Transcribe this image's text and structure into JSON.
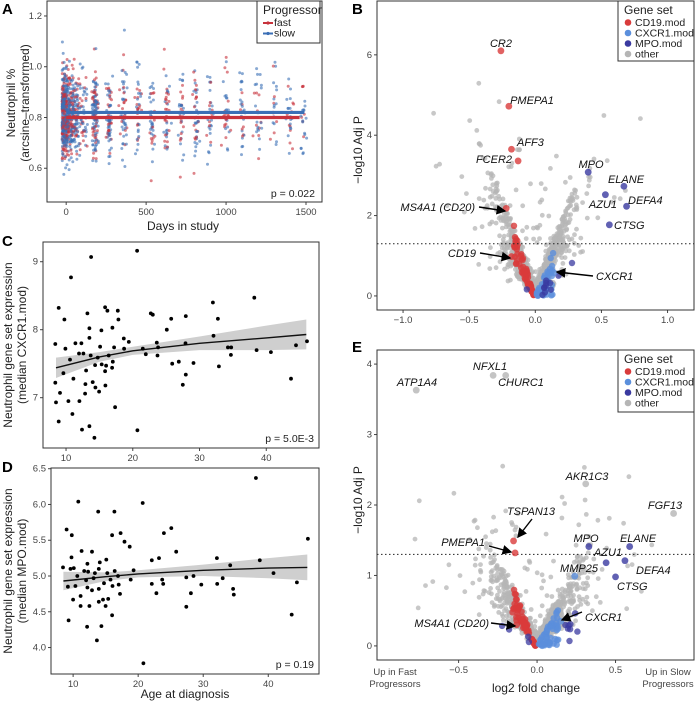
{
  "chart_data": [
    {
      "panel": "A",
      "type": "scatter",
      "xlabel": "Days in study",
      "ylabel": [
        "Neutrophil %",
        "(arcsine–transformed)"
      ],
      "x_ticks": [
        "0",
        "500",
        "1000",
        "1500"
      ],
      "y_ticks": [
        "0.6",
        "0.8",
        "1.0",
        "1.2"
      ],
      "xlim": [
        -120,
        1600
      ],
      "ylim": [
        0.467,
        1.259
      ],
      "grid": false,
      "legend": {
        "title": "Progressor",
        "position": "top-right",
        "entries": [
          {
            "name": "fast",
            "color": "#c8323c"
          },
          {
            "name": "slow",
            "color": "#3b6fb6"
          }
        ]
      },
      "fits": [
        {
          "series": "slow",
          "y": 0.82,
          "x": [
            0,
            1490
          ]
        },
        {
          "series": "fast",
          "y": 0.8,
          "x": [
            0,
            1460
          ]
        }
      ],
      "y_range_of_points": [
        0.5,
        1.22
      ],
      "annotation": "p = 0.022"
    },
    {
      "panel": "B",
      "type": "scatter",
      "xlabel": "",
      "ylabel": "−log10 Adj P",
      "x_ticks": [
        "−1.0",
        "−0.5",
        "0.0",
        "0.5",
        "1.0"
      ],
      "y_ticks": [
        "0",
        "2",
        "4",
        "6"
      ],
      "xlim": [
        -1.197,
        1.2
      ],
      "ylim": [
        -0.35,
        7.34
      ],
      "threshold": 1.3,
      "legend": {
        "title": "Gene set",
        "position": "top-right",
        "entries": [
          {
            "name": "CD19.mod",
            "color": "#d93b3b"
          },
          {
            "name": "CXCR1.mod",
            "color": "#5b8fdc"
          },
          {
            "name": "MPO.mod",
            "color": "#3a3aa0"
          },
          {
            "name": "other",
            "color": "#b5b5b5"
          }
        ]
      },
      "labeled_genes": [
        {
          "name": "CR2",
          "set": "CD19.mod",
          "x": -0.26,
          "y": 6.1
        },
        {
          "name": "PMEPA1",
          "set": "CD19.mod",
          "x": -0.2,
          "y": 4.72
        },
        {
          "name": "AFF3",
          "set": "CD19.mod",
          "x": -0.18,
          "y": 3.65
        },
        {
          "name": "FCER2",
          "set": "CD19.mod",
          "x": -0.13,
          "y": 3.36
        },
        {
          "name": "MPO",
          "set": "MPO.mod",
          "x": 0.4,
          "y": 3.08
        },
        {
          "name": "ELANE",
          "set": "MPO.mod",
          "x": 0.67,
          "y": 2.73
        },
        {
          "name": "AZU1",
          "set": "MPO.mod",
          "x": 0.53,
          "y": 2.52
        },
        {
          "name": "DEFA4",
          "set": "MPO.mod",
          "x": 0.69,
          "y": 2.23
        },
        {
          "name": "CTSG",
          "set": "MPO.mod",
          "x": 0.56,
          "y": 1.77
        },
        {
          "name": "MS4A1 (CD20)",
          "set": "CD19.mod",
          "x": -0.22,
          "y": 2.18
        },
        {
          "name": "CD19",
          "set": "CD19.mod",
          "x": -0.18,
          "y": 0.98
        },
        {
          "name": "CXCR1",
          "set": "CXCR1.mod",
          "x": 0.14,
          "y": 0.58
        }
      ]
    },
    {
      "panel": "C",
      "type": "scatter",
      "xlabel": "",
      "ylabel": [
        "Neutrophil gene set expression",
        "(median CXCR1.mod)"
      ],
      "x_ticks": [
        "10",
        "20",
        "30",
        "40"
      ],
      "y_ticks": [
        "7",
        "8",
        "9"
      ],
      "xlim": [
        6.55,
        47.9
      ],
      "ylim": [
        6.26,
        9.29
      ],
      "annotation": "p = 5.0E-3",
      "points": [
        [
          13.75,
          9.07
        ],
        [
          20.65,
          9.16
        ],
        [
          10.75,
          8.77
        ],
        [
          8.9,
          8.32
        ],
        [
          9.75,
          8.15
        ],
        [
          8.4,
          7.79
        ],
        [
          8.4,
          7.22
        ],
        [
          8.5,
          6.93
        ],
        [
          8.9,
          6.65
        ],
        [
          10.95,
          6.76
        ],
        [
          12.4,
          6.53
        ],
        [
          13.5,
          6.58
        ],
        [
          14.25,
          6.41
        ],
        [
          20.7,
          6.52
        ],
        [
          17.35,
          6.86
        ],
        [
          13.2,
          8.24
        ],
        [
          15.85,
          8.33
        ],
        [
          16.2,
          8.28
        ],
        [
          17.75,
          8.28
        ],
        [
          17.85,
          8.15
        ],
        [
          16.95,
          8.03
        ],
        [
          15.3,
          7.99
        ],
        [
          13.5,
          8.02
        ],
        [
          22.7,
          8.24
        ],
        [
          23,
          8.22
        ],
        [
          25.1,
          8.0
        ],
        [
          25.75,
          8.16
        ],
        [
          27.95,
          8.2
        ],
        [
          32,
          8.4
        ],
        [
          32.75,
          8.16
        ],
        [
          38.2,
          8.47
        ],
        [
          32.1,
          7.91
        ],
        [
          27.9,
          7.8
        ],
        [
          23.6,
          7.81
        ],
        [
          18.65,
          7.87
        ],
        [
          19.4,
          7.82
        ],
        [
          21.5,
          7.72
        ],
        [
          21.95,
          7.64
        ],
        [
          23.7,
          7.62
        ],
        [
          23.8,
          7.74
        ],
        [
          25.9,
          7.5
        ],
        [
          26.9,
          7.53
        ],
        [
          29.1,
          7.51
        ],
        [
          27.5,
          7.19
        ],
        [
          27.95,
          7.34
        ],
        [
          32.9,
          7.46
        ],
        [
          34.25,
          7.74
        ],
        [
          34.75,
          7.74
        ],
        [
          34.7,
          7.63
        ],
        [
          38.55,
          7.7
        ],
        [
          40.7,
          7.67
        ],
        [
          43.7,
          7.28
        ],
        [
          44.45,
          7.77
        ],
        [
          46.1,
          7.83
        ],
        [
          10.6,
          7.56
        ],
        [
          9.6,
          7.36
        ],
        [
          9.1,
          7.07
        ],
        [
          10.35,
          6.95
        ],
        [
          12,
          6.95
        ],
        [
          12.85,
          7.06
        ],
        [
          12.9,
          7.2
        ],
        [
          14,
          7.23
        ],
        [
          14.4,
          7.15
        ],
        [
          14.95,
          7.09
        ],
        [
          15.9,
          7.18
        ],
        [
          16.9,
          7.44
        ],
        [
          15.85,
          7.39
        ],
        [
          12.3,
          7.8
        ],
        [
          12.6,
          7.65
        ],
        [
          13.7,
          7.62
        ],
        [
          14.75,
          7.59
        ],
        [
          15.1,
          7.75
        ],
        [
          17.2,
          7.74
        ],
        [
          13.5,
          7.88
        ],
        [
          11.4,
          7.8
        ],
        [
          9.9,
          7.72
        ],
        [
          11.95,
          7.65
        ],
        [
          13,
          7.4
        ],
        [
          11.1,
          7.28
        ],
        [
          16,
          7.47
        ],
        [
          15.35,
          7.49
        ],
        [
          14.35,
          7.48
        ],
        [
          16.4,
          7.62
        ],
        [
          17,
          7.53
        ],
        [
          18.7,
          7.72
        ]
      ],
      "fit": [
        [
          8.5,
          7.44
        ],
        [
          15,
          7.6
        ],
        [
          20,
          7.69
        ],
        [
          30,
          7.8
        ],
        [
          40,
          7.88
        ],
        [
          46,
          7.93
        ]
      ],
      "ci_halfwidth": [
        [
          8.5,
          0.15
        ],
        [
          15,
          0.07
        ],
        [
          20,
          0.06
        ],
        [
          30,
          0.1
        ],
        [
          40,
          0.18
        ],
        [
          46,
          0.22
        ]
      ]
    },
    {
      "panel": "D",
      "type": "scatter",
      "xlabel": "Age at diagnosis",
      "ylabel": [
        "Neutrophil gene set expression",
        "(median MPO.mod)"
      ],
      "x_ticks": [
        "10",
        "20",
        "30",
        "40"
      ],
      "y_ticks": [
        "4.0",
        "4.5",
        "5.0",
        "5.5",
        "6.0",
        "6.5"
      ],
      "xlim": [
        6.6,
        47.8
      ],
      "ylim": [
        3.63,
        6.51
      ],
      "annotation": "p = 0.19",
      "points": [
        [
          38.1,
          6.37
        ],
        [
          10.8,
          6.04
        ],
        [
          20.7,
          6.02
        ],
        [
          13.85,
          5.9
        ],
        [
          16.35,
          5.9
        ],
        [
          9,
          5.65
        ],
        [
          9.8,
          5.57
        ],
        [
          16,
          5.57
        ],
        [
          17.3,
          5.6
        ],
        [
          23.95,
          5.6
        ],
        [
          25.1,
          5.67
        ],
        [
          46.1,
          5.52
        ],
        [
          17.9,
          5.48
        ],
        [
          18.7,
          5.41
        ],
        [
          11.3,
          5.35
        ],
        [
          12.9,
          5.34
        ],
        [
          25.85,
          5.34
        ],
        [
          22.1,
          5.22
        ],
        [
          23.2,
          5.25
        ],
        [
          32.1,
          5.25
        ],
        [
          38.7,
          5.22
        ],
        [
          34.15,
          5.15
        ],
        [
          40.8,
          5.04
        ],
        [
          44.4,
          4.91
        ],
        [
          43.6,
          4.46
        ],
        [
          34.6,
          4.82
        ],
        [
          34.7,
          4.74
        ],
        [
          27.4,
          4.98
        ],
        [
          28.5,
          5.0
        ],
        [
          29.7,
          4.88
        ],
        [
          32.15,
          4.89
        ],
        [
          33,
          4.97
        ],
        [
          27.4,
          4.57
        ],
        [
          28.1,
          4.76
        ],
        [
          23.7,
          4.95
        ],
        [
          23.85,
          4.89
        ],
        [
          22.1,
          4.89
        ],
        [
          22.8,
          4.76
        ],
        [
          19.3,
          5.08
        ],
        [
          18.85,
          4.95
        ],
        [
          20.8,
          3.78
        ],
        [
          13.65,
          4.1
        ],
        [
          9.3,
          4.38
        ],
        [
          12.15,
          4.29
        ],
        [
          14.35,
          4.3
        ],
        [
          16,
          4.45
        ],
        [
          8.45,
          5.12
        ],
        [
          9.6,
          5.1
        ],
        [
          9.75,
          5.26
        ],
        [
          10.1,
          5.11
        ],
        [
          9.2,
          4.85
        ],
        [
          10.35,
          4.86
        ],
        [
          10,
          4.67
        ],
        [
          11.15,
          4.72
        ],
        [
          10.65,
          5.0
        ],
        [
          12,
          4.94
        ],
        [
          12.2,
          4.84
        ],
        [
          12.9,
          4.8
        ],
        [
          13.95,
          4.64
        ],
        [
          14.6,
          4.67
        ],
        [
          12.5,
          4.58
        ],
        [
          11.15,
          4.58
        ],
        [
          12.2,
          5.17
        ],
        [
          12.3,
          5.06
        ],
        [
          13.35,
          5.04
        ],
        [
          13.95,
          5.1
        ],
        [
          14.1,
          5.19
        ],
        [
          15.1,
          5.23
        ],
        [
          15.25,
          5.04
        ],
        [
          15.75,
          4.95
        ],
        [
          16.05,
          4.86
        ],
        [
          16.4,
          5.07
        ],
        [
          16.9,
          5.0
        ],
        [
          17,
          4.88
        ],
        [
          17.2,
          4.75
        ],
        [
          14.75,
          4.9
        ],
        [
          13.95,
          4.82
        ],
        [
          13.15,
          4.97
        ],
        [
          11.7,
          5.07
        ],
        [
          15,
          4.58
        ],
        [
          15.4,
          4.68
        ]
      ],
      "fit": [
        [
          8.5,
          4.93
        ],
        [
          15,
          4.99
        ],
        [
          20,
          5.03
        ],
        [
          30,
          5.08
        ],
        [
          40,
          5.11
        ],
        [
          46,
          5.12
        ]
      ],
      "ci_halfwidth": [
        [
          8.5,
          0.13
        ],
        [
          15,
          0.06
        ],
        [
          20,
          0.05
        ],
        [
          30,
          0.08
        ],
        [
          40,
          0.14
        ],
        [
          46,
          0.18
        ]
      ]
    },
    {
      "panel": "E",
      "type": "scatter",
      "xlabel": "log2 fold change",
      "ylabel": "−log10 Adj P",
      "x_ticks": [
        "−0.5",
        "0.0",
        "0.5"
      ],
      "y_ticks": [
        "0",
        "1",
        "2",
        "3",
        "4"
      ],
      "x_end_labels": {
        "left": [
          "Up in Fast",
          "Progressors"
        ],
        "right": [
          "Up in Slow",
          "Progressors"
        ]
      },
      "xlim": [
        -1.02,
        1.0
      ],
      "ylim": [
        -0.2,
        4.2
      ],
      "threshold": 1.3,
      "legend": {
        "title": "Gene set",
        "position": "top-right",
        "entries": [
          {
            "name": "CD19.mod",
            "color": "#d93b3b"
          },
          {
            "name": "CXCR1.mod",
            "color": "#5b8fdc"
          },
          {
            "name": "MPO.mod",
            "color": "#3a3aa0"
          },
          {
            "name": "other",
            "color": "#b5b5b5"
          }
        ]
      },
      "labeled_genes": [
        {
          "name": "ATP1A4",
          "set": "other",
          "x": -0.77,
          "y": 3.63
        },
        {
          "name": "NFXL1",
          "set": "other",
          "x": -0.28,
          "y": 3.84
        },
        {
          "name": "CHURC1",
          "set": "other",
          "x": -0.2,
          "y": 3.84
        },
        {
          "name": "AKR1C3",
          "set": "other",
          "x": 0.31,
          "y": 2.3
        },
        {
          "name": "FGF13",
          "set": "other",
          "x": 0.87,
          "y": 1.88
        },
        {
          "name": "TSPAN13",
          "set": "CD19.mod",
          "x": -0.15,
          "y": 1.49
        },
        {
          "name": "PMEPA1",
          "set": "CD19.mod",
          "x": -0.14,
          "y": 1.32
        },
        {
          "name": "MPO",
          "set": "MPO.mod",
          "x": 0.33,
          "y": 1.41
        },
        {
          "name": "ELANE",
          "set": "MPO.mod",
          "x": 0.59,
          "y": 1.41
        },
        {
          "name": "AZU1",
          "set": "MPO.mod",
          "x": 0.44,
          "y": 1.18
        },
        {
          "name": "DEFA4",
          "set": "MPO.mod",
          "x": 0.56,
          "y": 1.21
        },
        {
          "name": "CTSG",
          "set": "MPO.mod",
          "x": 0.5,
          "y": 0.98
        },
        {
          "name": "MMP25",
          "set": "CXCR1.mod",
          "x": 0.24,
          "y": 0.99
        },
        {
          "name": "MS4A1 (CD20)",
          "set": "CD19.mod",
          "x": -0.13,
          "y": 0.3
        },
        {
          "name": "CXCR1",
          "set": "CXCR1.mod",
          "x": 0.15,
          "y": 0.35
        }
      ]
    }
  ]
}
